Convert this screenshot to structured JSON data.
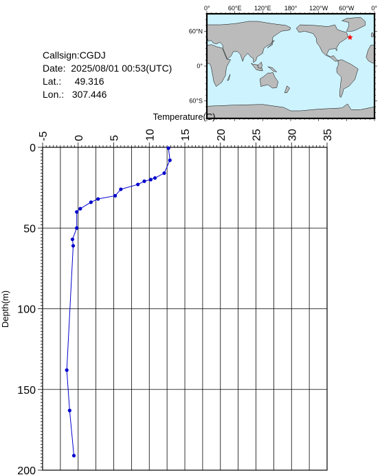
{
  "info": {
    "callsign": "Callsign:CGDJ",
    "date_label": "Date:",
    "date_value": "2025/08/01 00:53(UTC)",
    "lat_label": "Lat.:",
    "lat_value": "49.316",
    "lon_label": "Lon.:",
    "lon_value": "307.446"
  },
  "map": {
    "lon_ticks": [
      "0°",
      "60°E",
      "120°E",
      "180°",
      "120°W",
      "60°W",
      "0°"
    ],
    "lat_ticks": [
      "60°N",
      "0°",
      "60°S"
    ],
    "ocean_color": "#cdf3ff",
    "land_color": "#bbbbbb",
    "marker_color": "#ff0000",
    "marker_lon": 307.446,
    "marker_lat": 49.316
  },
  "chart_data": {
    "type": "line",
    "xlabel": "Temperature(C)",
    "ylabel": "Depth(m)",
    "xlim": [
      -5,
      35
    ],
    "ylim": [
      0,
      200
    ],
    "x_ticks": [
      -5,
      0,
      5,
      10,
      15,
      20,
      25,
      30,
      35
    ],
    "y_ticks": [
      0,
      50,
      100,
      150,
      200
    ],
    "grid": true,
    "series_color": "#0000cc",
    "series": [
      {
        "points": [
          [
            12.7,
            0.5
          ],
          [
            12.9,
            8
          ],
          [
            12.1,
            16
          ],
          [
            10.8,
            19
          ],
          [
            10.2,
            20
          ],
          [
            9.3,
            21
          ],
          [
            8.4,
            23
          ],
          [
            6.0,
            26
          ],
          [
            5.2,
            30
          ],
          [
            2.8,
            32
          ],
          [
            1.8,
            34
          ],
          [
            0.3,
            38
          ],
          [
            -0.2,
            40
          ],
          [
            -0.2,
            50
          ],
          [
            -0.8,
            57
          ],
          [
            -0.7,
            61
          ],
          [
            -1.6,
            138
          ],
          [
            -1.2,
            163
          ],
          [
            -0.6,
            191
          ]
        ]
      }
    ]
  }
}
